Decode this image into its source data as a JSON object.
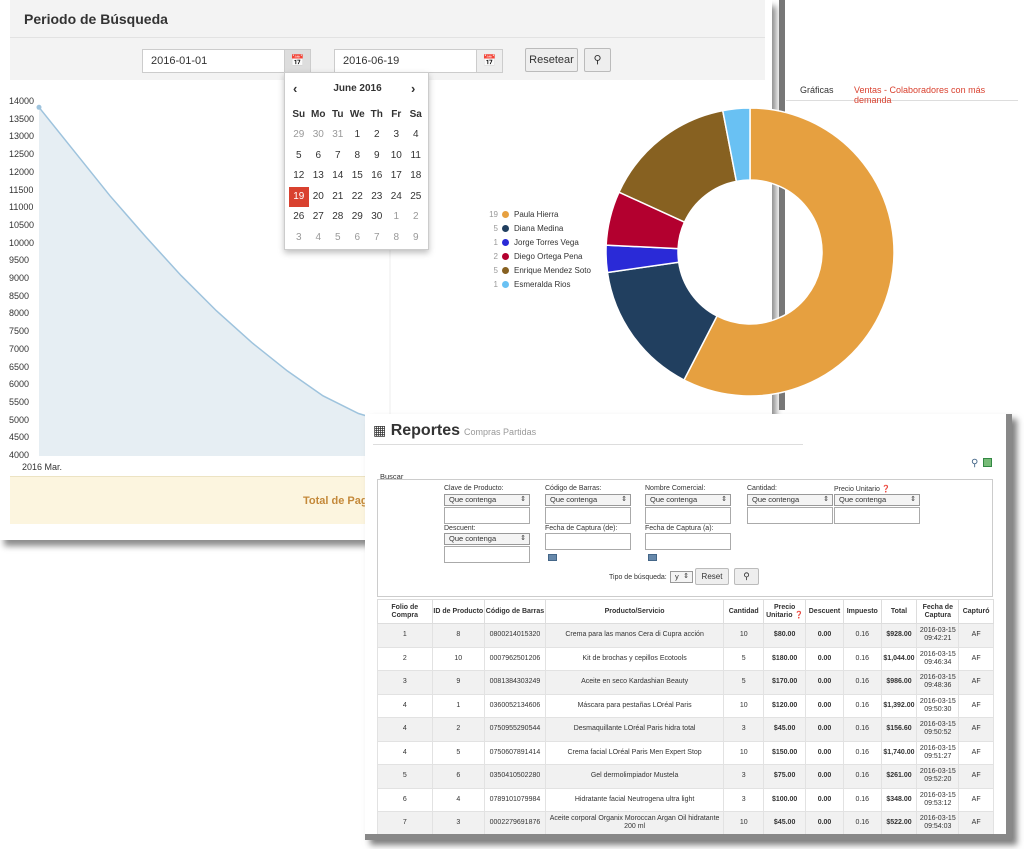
{
  "period": {
    "title": "Periodo de Búsqueda",
    "date_from": "2016-01-01",
    "date_to": "2016-06-19",
    "reset_label": "Resetear"
  },
  "calendar": {
    "month_label": "June 2016",
    "prev": "‹",
    "next": "›",
    "weekdays": [
      "Su",
      "Mo",
      "Tu",
      "We",
      "Th",
      "Fr",
      "Sa"
    ],
    "weeks": [
      [
        "29",
        "30",
        "31",
        "1",
        "2",
        "3",
        "4"
      ],
      [
        "5",
        "6",
        "7",
        "8",
        "9",
        "10",
        "11"
      ],
      [
        "12",
        "13",
        "14",
        "15",
        "16",
        "17",
        "18"
      ],
      [
        "19",
        "20",
        "21",
        "22",
        "23",
        "24",
        "25"
      ],
      [
        "26",
        "27",
        "28",
        "29",
        "30",
        "1",
        "2"
      ],
      [
        "3",
        "4",
        "5",
        "6",
        "7",
        "8",
        "9"
      ]
    ],
    "selected": "19"
  },
  "chart_data": [
    {
      "type": "area",
      "x_start_label": "2016 Mar.",
      "yticks": [
        4000,
        4500,
        5000,
        5500,
        6000,
        6500,
        7000,
        7500,
        8000,
        8500,
        9000,
        9500,
        10000,
        10500,
        11000,
        11500,
        12000,
        12500,
        13000,
        13500,
        14000
      ],
      "ylim": [
        4000,
        14000
      ],
      "points": [
        [
          0,
          13850
        ],
        [
          0.1,
          12600
        ],
        [
          0.2,
          11350
        ],
        [
          0.3,
          10200
        ],
        [
          0.4,
          9100
        ],
        [
          0.5,
          8100
        ],
        [
          0.6,
          7200
        ],
        [
          0.7,
          6400
        ],
        [
          0.8,
          5700
        ],
        [
          0.9,
          5200
        ],
        [
          1.0,
          4900
        ]
      ],
      "color": "#9ec3dd",
      "fill": "#e6eef3"
    },
    {
      "type": "pie",
      "slices": [
        {
          "name": "Paula Hierra",
          "value": 19,
          "color": "#e6a040"
        },
        {
          "name": "Diana Medina",
          "value": 5,
          "color": "#213f5f"
        },
        {
          "name": "Jorge Torres Vega",
          "value": 1,
          "color": "#2a2ad7"
        },
        {
          "name": "Diego Ortega Pena",
          "value": 2,
          "color": "#b3002f"
        },
        {
          "name": "Enrique Mendez Soto",
          "value": 5,
          "color": "#876121"
        },
        {
          "name": "Esmeralda Rios",
          "value": 1,
          "color": "#69c1f3"
        }
      ]
    }
  ],
  "total_label": "Total de Pagos",
  "tabs": [
    "Gráficas",
    "Ventas - Colaboradores con más demanda"
  ],
  "reports": {
    "title": "Reportes",
    "subtitle": "Compras Partidas",
    "buscar": "Buscar",
    "filters": {
      "clave": "Clave de Producto:",
      "codigo": "Código de Barras:",
      "nombre": "Nombre Comercial:",
      "cantidad": "Cantidad:",
      "precio": "Precio Unitario",
      "descuent": "Descuent:",
      "fecha_de": "Fecha de Captura (de):",
      "fecha_a": "Fecha de Captura (a):",
      "op": "Que contenga",
      "tipo": "Tipo de búsqueda:",
      "tipo_val": "y",
      "reset": "Reset"
    },
    "headers": [
      "Folio de Compra",
      "ID de Producto",
      "Código de Barras",
      "Producto/Servicio",
      "Cantidad",
      "Precio Unitario",
      "Descuent",
      "Impuesto",
      "Total",
      "Fecha de Captura",
      "Capturó"
    ],
    "rows": [
      [
        "1",
        "8",
        "0800214015320",
        "Crema para las manos Cera di Cupra acción",
        "10",
        "$80.00",
        "0.00",
        "0.16",
        "$928.00",
        "2016-03-15 09:42:21",
        "AF"
      ],
      [
        "2",
        "10",
        "0007962501206",
        "Kit de brochas y cepillos Ecotools",
        "5",
        "$180.00",
        "0.00",
        "0.16",
        "$1,044.00",
        "2016-03-15 09:46:34",
        "AF"
      ],
      [
        "3",
        "9",
        "0081384303249",
        "Aceite en seco Kardashian Beauty",
        "5",
        "$170.00",
        "0.00",
        "0.16",
        "$986.00",
        "2016-03-15 09:48:36",
        "AF"
      ],
      [
        "4",
        "1",
        "0360052134606",
        "Máscara para pestañas LOréal Paris",
        "10",
        "$120.00",
        "0.00",
        "0.16",
        "$1,392.00",
        "2016-03-15 09:50:30",
        "AF"
      ],
      [
        "4",
        "2",
        "0750955290544",
        "Desmaquillante LOréal Paris hidra total",
        "3",
        "$45.00",
        "0.00",
        "0.16",
        "$156.60",
        "2016-03-15 09:50:52",
        "AF"
      ],
      [
        "4",
        "5",
        "0750607891414",
        "Crema facial LOréal Paris Men Expert Stop",
        "10",
        "$150.00",
        "0.00",
        "0.16",
        "$1,740.00",
        "2016-03-15 09:51:27",
        "AF"
      ],
      [
        "5",
        "6",
        "0350410502280",
        "Gel dermolimpiador Mustela",
        "3",
        "$75.00",
        "0.00",
        "0.16",
        "$261.00",
        "2016-03-15 09:52:20",
        "AF"
      ],
      [
        "6",
        "4",
        "0789101079984",
        "Hidratante facial Neutrogena ultra light",
        "3",
        "$100.00",
        "0.00",
        "0.16",
        "$348.00",
        "2016-03-15 09:53:12",
        "AF"
      ],
      [
        "7",
        "3",
        "0002279691876",
        "Aceite corporal Organix Moroccan Argan Oil hidratante 200 ml",
        "10",
        "$45.00",
        "0.00",
        "0.16",
        "$522.00",
        "2016-03-15 09:54:03",
        "AF"
      ]
    ]
  }
}
